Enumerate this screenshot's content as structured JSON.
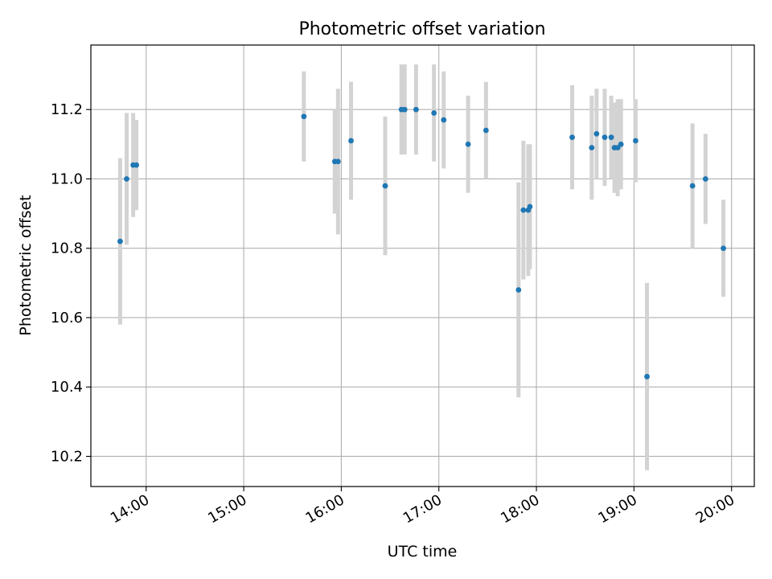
{
  "chart_data": {
    "type": "scatter",
    "title": "Photometric offset variation",
    "xlabel": "UTC time",
    "ylabel": "Photometric offset",
    "grid": true,
    "x_ticks": [
      "14:00",
      "15:00",
      "16:00",
      "17:00",
      "18:00",
      "19:00",
      "20:00"
    ],
    "y_ticks": [
      "10.2",
      "10.4",
      "10.6",
      "10.8",
      "11.0",
      "11.2"
    ],
    "xlim": [
      "13:26",
      "20:14"
    ],
    "ylim": [
      10.113,
      11.386
    ],
    "colors": {
      "marker": "#1f77b4",
      "errorbar": "#d3d3d3",
      "grid": "#b0b0b0"
    },
    "points": [
      {
        "x": "13:44",
        "y": 10.82,
        "err": 0.24
      },
      {
        "x": "13:48",
        "y": 11.0,
        "err": 0.19
      },
      {
        "x": "13:52",
        "y": 11.04,
        "err": 0.15
      },
      {
        "x": "13:54",
        "y": 11.04,
        "err": 0.13
      },
      {
        "x": "15:37",
        "y": 11.18,
        "err": 0.13
      },
      {
        "x": "15:56",
        "y": 11.05,
        "err": 0.15
      },
      {
        "x": "15:58",
        "y": 11.05,
        "err": 0.21
      },
      {
        "x": "16:06",
        "y": 11.11,
        "err": 0.17
      },
      {
        "x": "16:27",
        "y": 10.98,
        "err": 0.2
      },
      {
        "x": "16:37",
        "y": 11.2,
        "err": 0.13
      },
      {
        "x": "16:39",
        "y": 11.2,
        "err": 0.13
      },
      {
        "x": "16:46",
        "y": 11.2,
        "err": 0.13
      },
      {
        "x": "16:57",
        "y": 11.19,
        "err": 0.14
      },
      {
        "x": "17:03",
        "y": 11.17,
        "err": 0.14
      },
      {
        "x": "17:18",
        "y": 11.1,
        "err": 0.14
      },
      {
        "x": "17:29",
        "y": 11.14,
        "err": 0.14
      },
      {
        "x": "17:49",
        "y": 10.68,
        "err": 0.31
      },
      {
        "x": "17:52",
        "y": 10.91,
        "err": 0.2
      },
      {
        "x": "17:55",
        "y": 10.91,
        "err": 0.19
      },
      {
        "x": "17:56",
        "y": 10.92,
        "err": 0.18
      },
      {
        "x": "18:22",
        "y": 11.12,
        "err": 0.15
      },
      {
        "x": "18:34",
        "y": 11.09,
        "err": 0.15
      },
      {
        "x": "18:37",
        "y": 11.13,
        "err": 0.13
      },
      {
        "x": "18:42",
        "y": 11.12,
        "err": 0.14
      },
      {
        "x": "18:46",
        "y": 11.12,
        "err": 0.12
      },
      {
        "x": "18:48",
        "y": 11.09,
        "err": 0.13
      },
      {
        "x": "18:50",
        "y": 11.09,
        "err": 0.14
      },
      {
        "x": "18:52",
        "y": 11.1,
        "err": 0.13
      },
      {
        "x": "19:01",
        "y": 11.11,
        "err": 0.12
      },
      {
        "x": "19:08",
        "y": 10.43,
        "err": 0.27
      },
      {
        "x": "19:36",
        "y": 10.98,
        "err": 0.18
      },
      {
        "x": "19:44",
        "y": 11.0,
        "err": 0.13
      },
      {
        "x": "19:55",
        "y": 10.8,
        "err": 0.14
      }
    ]
  }
}
